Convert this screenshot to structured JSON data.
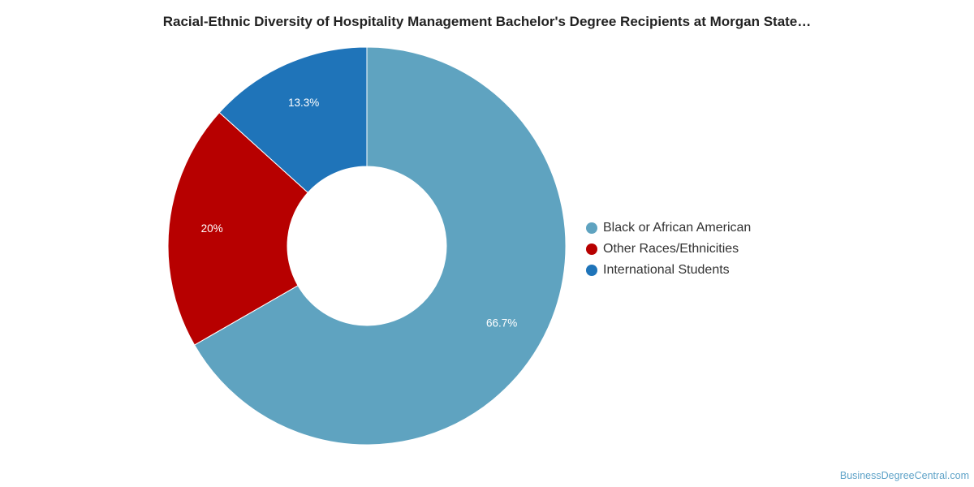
{
  "chart_data": {
    "type": "pie",
    "title": "Racial-Ethnic Diversity of Hospitality Management Bachelor's Degree Recipients at Morgan State…",
    "categories": [
      "Black or African American",
      "Other Races/Ethnicities",
      "International Students"
    ],
    "values": [
      66.7,
      20,
      13.3
    ],
    "value_labels": [
      "66.7%",
      "20%",
      "13.3%"
    ],
    "colors": [
      "#5fa3c0",
      "#b70000",
      "#1f74b9"
    ],
    "donut": true,
    "legend_position": "right"
  },
  "credit": "BusinessDegreeCentral.com"
}
